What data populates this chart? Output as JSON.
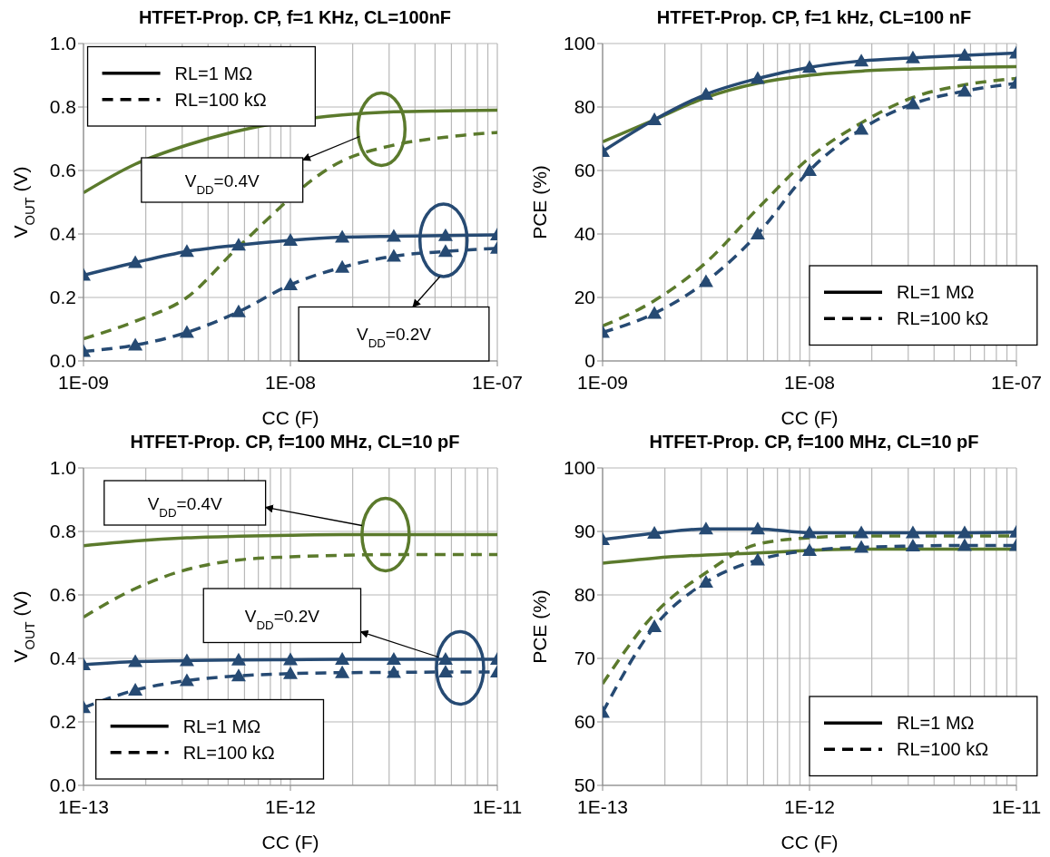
{
  "chart_data": [
    {
      "type": "line",
      "title": "HTFET-Prop. CP, f=1 KHz, CL=100nF",
      "xlabel": "CC (F)",
      "ylabel": "V$_{OUT}$ (V)",
      "log": "x",
      "grid": true,
      "xlim": [
        1e-09,
        1e-07
      ],
      "xticks": [
        {
          "value": 1e-09,
          "label": "1E-09"
        },
        {
          "value": 1e-08,
          "label": "1E-08"
        },
        {
          "value": 1e-07,
          "label": "1E-07"
        }
      ],
      "ylim": [
        0,
        1
      ],
      "yticks": [
        {
          "value": 0,
          "label": "0.0"
        },
        {
          "value": 0.2,
          "label": "0.2"
        },
        {
          "value": 0.4,
          "label": "0.4"
        },
        {
          "value": 0.6,
          "label": "0.6"
        },
        {
          "value": 0.8,
          "label": "0.8"
        },
        {
          "value": 1,
          "label": "1.0"
        }
      ],
      "x": [
        1e-09,
        1.78e-09,
        3.16e-09,
        5.62e-09,
        1e-08,
        1.78e-08,
        3.16e-08,
        5.62e-08,
        1e-07
      ],
      "series": [
        {
          "color": "#5b7a2c",
          "line_style": "solid",
          "marker": "none",
          "values": [
            0.53,
            0.62,
            0.68,
            0.725,
            null,
            0.775,
            0.785,
            0.788,
            0.79
          ]
        },
        {
          "color": "#5b7a2c",
          "line_style": "dashed",
          "marker": "none",
          "values": [
            0.07,
            0.125,
            0.2,
            0.36,
            null,
            0.63,
            0.68,
            0.705,
            0.72
          ]
        },
        {
          "color": "#264a73",
          "line_style": "solid",
          "marker": "triangle",
          "values": [
            0.27,
            0.31,
            0.345,
            0.365,
            0.38,
            0.39,
            0.393,
            0.395,
            0.397
          ]
        },
        {
          "color": "#264a73",
          "line_style": "dashed",
          "marker": "triangle",
          "values": [
            0.03,
            0.05,
            0.09,
            0.155,
            0.24,
            0.295,
            0.33,
            0.345,
            0.355
          ]
        }
      ],
      "annotations": [
        "RL=1 MΩ",
        "RL=100 kΩ",
        "V$_{DD}$=0.4V",
        "V$_{DD}$=0.2V"
      ]
    },
    {
      "type": "line",
      "title": "HTFET-Prop. CP, f=1 kHz, CL=100 nF",
      "xlabel": "CC (F)",
      "ylabel": "PCE (%)",
      "log": "x",
      "grid": true,
      "xlim": [
        1e-09,
        1e-07
      ],
      "xticks": [
        {
          "value": 1e-09,
          "label": "1E-09"
        },
        {
          "value": 1e-08,
          "label": "1E-08"
        },
        {
          "value": 1e-07,
          "label": "1E-07"
        }
      ],
      "ylim": [
        0,
        100
      ],
      "yticks": [
        0,
        20,
        40,
        60,
        80,
        100
      ],
      "x": [
        1e-09,
        1.78e-09,
        3.16e-09,
        5.62e-09,
        1e-08,
        1.78e-08,
        3.16e-08,
        5.62e-08,
        1e-07
      ],
      "series": [
        {
          "color": "#5b7a2c",
          "line_style": "solid",
          "marker": "none",
          "values": [
            69,
            76,
            83,
            87.5,
            90,
            91.3,
            92,
            92.5,
            92.7
          ]
        },
        {
          "color": "#5b7a2c",
          "line_style": "dashed",
          "marker": "none",
          "values": [
            11,
            19,
            31,
            48,
            64,
            75,
            83,
            87,
            89
          ]
        },
        {
          "color": "#264a73",
          "line_style": "solid",
          "marker": "triangle",
          "values": [
            66,
            76,
            84,
            89,
            92.5,
            94.5,
            95.5,
            96.3,
            97
          ]
        },
        {
          "color": "#264a73",
          "line_style": "dashed",
          "marker": "triangle",
          "values": [
            9,
            15,
            25,
            40,
            60,
            73,
            81,
            85,
            87.5
          ]
        }
      ],
      "annotations": [
        "RL=1 MΩ",
        "RL=100 kΩ"
      ]
    },
    {
      "type": "line",
      "title": "HTFET-Prop. CP, f=100 MHz, CL=10 pF",
      "xlabel": "CC (F)",
      "ylabel": "V$_{OUT}$ (V)",
      "log": "x",
      "grid": true,
      "xlim": [
        1e-13,
        1e-11
      ],
      "xticks": [
        {
          "value": 1e-13,
          "label": "1E-13"
        },
        {
          "value": 1e-12,
          "label": "1E-12"
        },
        {
          "value": 1e-11,
          "label": "1E-11"
        }
      ],
      "ylim": [
        0,
        1
      ],
      "yticks": [
        {
          "value": 0,
          "label": "0.0"
        },
        {
          "value": 0.2,
          "label": "0.2"
        },
        {
          "value": 0.4,
          "label": "0.4"
        },
        {
          "value": 0.6,
          "label": "0.6"
        },
        {
          "value": 0.8,
          "label": "0.8"
        },
        {
          "value": 1,
          "label": "1.0"
        }
      ],
      "x": [
        1e-13,
        1.78e-13,
        3.16e-13,
        5.62e-13,
        1e-12,
        1.78e-12,
        3.16e-12,
        5.62e-12,
        1e-11
      ],
      "series": [
        {
          "color": "#5b7a2c",
          "line_style": "solid",
          "marker": "none",
          "values": [
            0.755,
            0.77,
            0.78,
            0.785,
            0.788,
            0.79,
            0.79,
            0.79,
            0.79
          ]
        },
        {
          "color": "#5b7a2c",
          "line_style": "dashed",
          "marker": "none",
          "values": [
            0.53,
            0.62,
            0.68,
            0.71,
            0.72,
            0.725,
            0.727,
            0.727,
            0.727
          ]
        },
        {
          "color": "#264a73",
          "line_style": "solid",
          "marker": "triangle",
          "values": [
            0.38,
            0.39,
            0.393,
            0.395,
            0.396,
            0.397,
            0.397,
            0.397,
            0.397
          ]
        },
        {
          "color": "#264a73",
          "line_style": "dashed",
          "marker": "triangle",
          "values": [
            0.245,
            0.3,
            0.33,
            0.345,
            0.352,
            0.355,
            0.356,
            0.357,
            0.357
          ]
        }
      ],
      "annotations": [
        "RL=1 MΩ",
        "RL=100 kΩ",
        "V$_{DD}$=0.4V",
        "V$_{DD}$=0.2V"
      ]
    },
    {
      "type": "line",
      "title": "HTFET-Prop. CP, f=100 MHz, CL=10 pF",
      "xlabel": "CC (F)",
      "ylabel": "PCE (%)",
      "log": "x",
      "grid": true,
      "xlim": [
        1e-13,
        1e-11
      ],
      "xticks": [
        {
          "value": 1e-13,
          "label": "1E-13"
        },
        {
          "value": 1e-12,
          "label": "1E-12"
        },
        {
          "value": 1e-11,
          "label": "1E-11"
        }
      ],
      "ylim": [
        50,
        100
      ],
      "yticks": [
        50,
        60,
        70,
        80,
        90,
        100
      ],
      "x": [
        1e-13,
        1.78e-13,
        3.16e-13,
        5.62e-13,
        1e-12,
        1.78e-12,
        3.16e-12,
        5.62e-12,
        1e-11
      ],
      "series": [
        {
          "color": "#5b7a2c",
          "line_style": "solid",
          "marker": "none",
          "values": [
            85,
            85.8,
            86.3,
            86.6,
            87,
            87.2,
            87.2,
            87.2,
            87.2
          ]
        },
        {
          "color": "#5b7a2c",
          "line_style": "dashed",
          "marker": "none",
          "values": [
            66,
            77,
            83.5,
            88,
            89,
            89.3,
            89.3,
            89.3,
            89.3
          ]
        },
        {
          "color": "#264a73",
          "line_style": "solid",
          "marker": "triangle",
          "values": [
            88.7,
            89.7,
            90.4,
            90.4,
            89.8,
            89.8,
            89.8,
            89.8,
            89.9
          ]
        },
        {
          "color": "#264a73",
          "line_style": "dashed",
          "marker": "triangle",
          "values": [
            61.5,
            75,
            82,
            85.5,
            87,
            87.5,
            87.7,
            87.8,
            87.8
          ]
        }
      ],
      "annotations": [
        "RL=1 MΩ",
        "RL=100 kΩ"
      ]
    }
  ]
}
